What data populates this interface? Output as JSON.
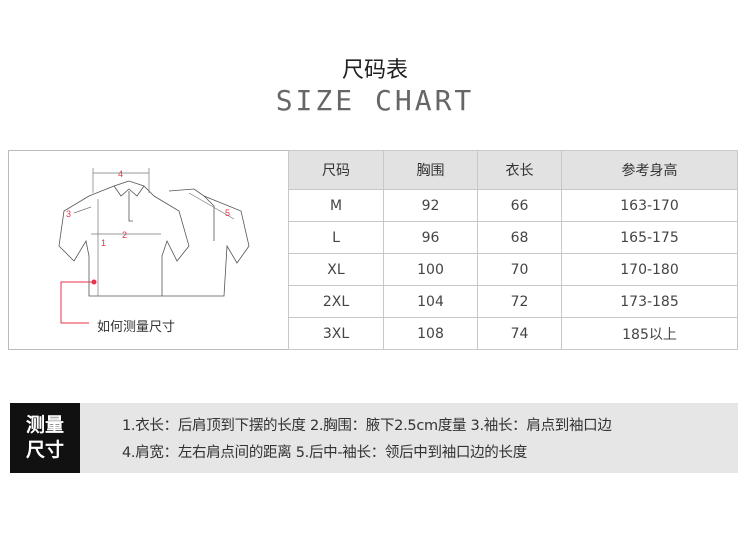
{
  "header": {
    "title_cn": "尺码表",
    "title_en": "SIZE CHART"
  },
  "diagram": {
    "caption": "如何测量尺寸",
    "markers": [
      "1",
      "2",
      "3",
      "4",
      "5"
    ],
    "marker_color": "#e8334a"
  },
  "table": {
    "headers": [
      "尺码",
      "胸围",
      "衣长",
      "参考身高"
    ],
    "rows": [
      [
        "M",
        "92",
        "66",
        "163-170"
      ],
      [
        "L",
        "96",
        "68",
        "165-175"
      ],
      [
        "XL",
        "100",
        "70",
        "170-180"
      ],
      [
        "2XL",
        "104",
        "72",
        "173-185"
      ],
      [
        "3XL",
        "108",
        "74",
        "185以上"
      ]
    ]
  },
  "measure": {
    "label_line1": "测量",
    "label_line2": "尺寸",
    "line1": "1.衣长：后肩顶到下摆的长度   2.胸围：腋下2.5cm度量   3.袖长：肩点到袖口边",
    "line2": "4.肩宽：左右肩点间的距离   5.后中-袖长：领后中到袖口边的长度"
  }
}
